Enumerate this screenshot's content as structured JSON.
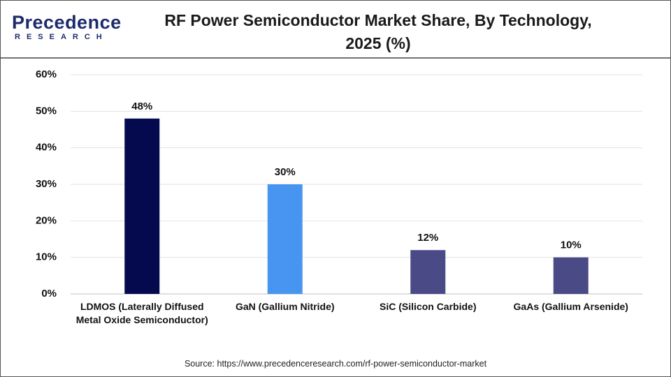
{
  "logo": {
    "name": "Precedence",
    "tagline": "RESEARCH"
  },
  "chart_data": {
    "type": "bar",
    "title": "RF Power Semiconductor Market Share, By Technology, 2025 (%)",
    "categories": [
      "LDMOS (Laterally Diffused Metal Oxide Semiconductor)",
      "GaN (Gallium Nitride)",
      "SiC (Silicon Carbide)",
      "GaAs (Gallium Arsenide)"
    ],
    "values": [
      48,
      30,
      12,
      10
    ],
    "value_labels": [
      "48%",
      "30%",
      "12%",
      "10%"
    ],
    "colors": [
      "#050a4f",
      "#4795f0",
      "#4a4a86",
      "#4a4a86"
    ],
    "ylim": [
      0,
      60
    ],
    "yticks": [
      {
        "value": 0,
        "label": "0%"
      },
      {
        "value": 10,
        "label": "10%"
      },
      {
        "value": 20,
        "label": "20%"
      },
      {
        "value": 30,
        "label": "30%"
      },
      {
        "value": 40,
        "label": "40%"
      },
      {
        "value": 50,
        "label": "50%"
      },
      {
        "value": 60,
        "label": "60%"
      }
    ],
    "grid": true,
    "source": "Source: https://www.precedenceresearch.com/rf-power-semiconductor-market"
  }
}
